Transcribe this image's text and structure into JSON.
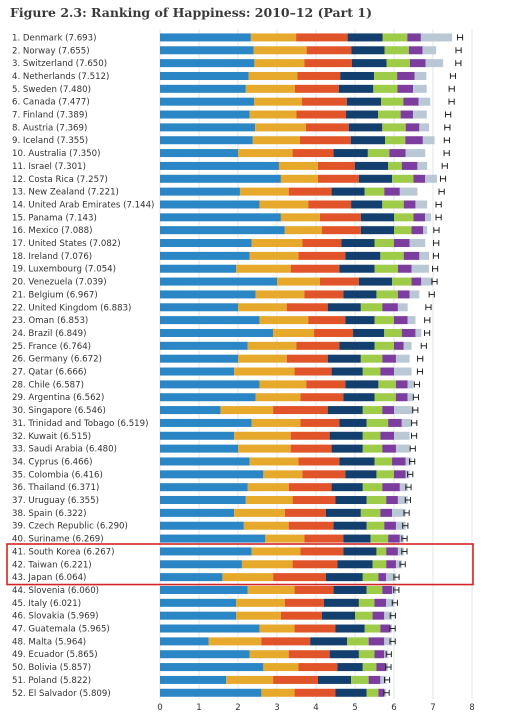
{
  "title": "Figure 2.3: Ranking of Happiness: 2010–12 (Part 1)",
  "chart_data": {
    "type": "bar",
    "orientation": "horizontal",
    "stacked": true,
    "xlim": [
      0,
      8
    ],
    "xticks": [
      0,
      1,
      2,
      3,
      4,
      5,
      6,
      7,
      8
    ],
    "grid": true,
    "highlight_rows": [
      41,
      42,
      43
    ],
    "components_order": [
      "dystopia_residual",
      "gdp",
      "social",
      "health",
      "freedom",
      "generosity",
      "corruption"
    ],
    "colors": {
      "dystopia_residual": "#2a86c4",
      "gdp": "#e7a92c",
      "social": "#e1542a",
      "health": "#123f6e",
      "freedom": "#9ecb48",
      "generosity": "#7c3d9e",
      "corruption": "#b9c8d4",
      "highlight": "#d42525"
    },
    "rows": [
      {
        "rank": 1,
        "label": "1. Denmark (7.693)",
        "value": 7.693,
        "segments": [
          2.33,
          1.16,
          1.32,
          0.9,
          0.63,
          0.35,
          0.8
        ]
      },
      {
        "rank": 2,
        "label": "2. Norway (7.655)",
        "value": 7.655,
        "segments": [
          2.4,
          1.36,
          1.15,
          0.85,
          0.62,
          0.35,
          0.35
        ]
      },
      {
        "rank": 3,
        "label": "3. Switzerland (7.650)",
        "value": 7.65,
        "segments": [
          2.42,
          1.28,
          1.22,
          0.89,
          0.6,
          0.4,
          0.45
        ]
      },
      {
        "rank": 4,
        "label": "4. Netherlands (7.512)",
        "value": 7.512,
        "segments": [
          2.27,
          1.25,
          1.1,
          0.87,
          0.59,
          0.45,
          0.3
        ]
      },
      {
        "rank": 5,
        "label": "5. Sweden (7.480)",
        "value": 7.48,
        "segments": [
          2.2,
          1.26,
          1.13,
          0.88,
          0.62,
          0.4,
          0.35
        ]
      },
      {
        "rank": 6,
        "label": "6. Canada (7.477)",
        "value": 7.477,
        "segments": [
          2.41,
          1.23,
          1.15,
          0.88,
          0.57,
          0.39,
          0.3
        ]
      },
      {
        "rank": 7,
        "label": "7. Finland (7.389)",
        "value": 7.389,
        "segments": [
          2.3,
          1.2,
          1.27,
          0.82,
          0.58,
          0.32,
          0.35
        ]
      },
      {
        "rank": 8,
        "label": "8. Austria (7.369)",
        "value": 7.369,
        "segments": [
          2.44,
          1.3,
          1.1,
          0.86,
          0.6,
          0.35,
          0.25
        ]
      },
      {
        "rank": 9,
        "label": "9. Iceland (7.355)",
        "value": 7.355,
        "segments": [
          2.38,
          1.21,
          1.3,
          0.88,
          0.52,
          0.45,
          0.3
        ]
      },
      {
        "rank": 10,
        "label": "10. Australia (7.350)",
        "value": 7.35,
        "segments": [
          2.0,
          1.4,
          1.05,
          0.88,
          0.55,
          0.42,
          0.5
        ]
      },
      {
        "rank": 11,
        "label": "11. Israel (7.301)",
        "value": 7.301,
        "segments": [
          3.05,
          1.0,
          0.95,
          0.85,
          0.35,
          0.4,
          0.25
        ]
      },
      {
        "rank": 12,
        "label": "12. Costa Rica (7.257)",
        "value": 7.257,
        "segments": [
          3.1,
          0.95,
          1.05,
          0.85,
          0.55,
          0.3,
          0.3
        ]
      },
      {
        "rank": 13,
        "label": "13. New Zealand (7.221)",
        "value": 7.221,
        "segments": [
          2.05,
          1.25,
          1.1,
          0.85,
          0.5,
          0.4,
          0.45
        ]
      },
      {
        "rank": 14,
        "label": "14. United Arab Emirates (7.144)",
        "value": 7.144,
        "segments": [
          2.55,
          1.25,
          1.1,
          0.8,
          0.55,
          0.3,
          0.3
        ]
      },
      {
        "rank": 15,
        "label": "15. Panama (7.143)",
        "value": 7.143,
        "segments": [
          3.1,
          1.0,
          1.05,
          0.85,
          0.5,
          0.3,
          0.15
        ]
      },
      {
        "rank": 16,
        "label": "16. Mexico (7.088)",
        "value": 7.088,
        "segments": [
          3.2,
          0.95,
          1.0,
          0.85,
          0.45,
          0.3,
          0.1
        ]
      },
      {
        "rank": 17,
        "label": "17. United States (7.082)",
        "value": 7.082,
        "segments": [
          2.35,
          1.3,
          1.0,
          0.85,
          0.5,
          0.4,
          0.4
        ]
      },
      {
        "rank": 18,
        "label": "18. Ireland (7.076)",
        "value": 7.076,
        "segments": [
          2.3,
          1.25,
          1.2,
          0.9,
          0.6,
          0.4,
          0.25
        ]
      },
      {
        "rank": 19,
        "label": "19. Luxembourg (7.054)",
        "value": 7.054,
        "segments": [
          1.95,
          1.4,
          1.25,
          0.9,
          0.6,
          0.35,
          0.45
        ]
      },
      {
        "rank": 20,
        "label": "20. Venezuela (7.039)",
        "value": 7.039,
        "segments": [
          3.0,
          1.1,
          1.0,
          0.85,
          0.5,
          0.25,
          0.3
        ]
      },
      {
        "rank": 21,
        "label": "21. Belgium (6.967)",
        "value": 6.967,
        "segments": [
          2.45,
          1.25,
          1.0,
          0.85,
          0.55,
          0.3,
          0.25
        ]
      },
      {
        "rank": 22,
        "label": "22. United Kingdom (6.883)",
        "value": 6.883,
        "segments": [
          2.0,
          1.25,
          1.05,
          0.85,
          0.55,
          0.4,
          0.25
        ]
      },
      {
        "rank": 23,
        "label": "23. Oman (6.853)",
        "value": 6.853,
        "segments": [
          2.55,
          1.25,
          0.95,
          0.75,
          0.5,
          0.35,
          0.2
        ]
      },
      {
        "rank": 24,
        "label": "24. Brazil (6.849)",
        "value": 6.849,
        "segments": [
          2.9,
          1.05,
          1.0,
          0.8,
          0.45,
          0.35,
          0.15
        ]
      },
      {
        "rank": 25,
        "label": "25. France (6.764)",
        "value": 6.764,
        "segments": [
          2.25,
          1.25,
          1.1,
          0.9,
          0.5,
          0.25,
          0.2
        ]
      },
      {
        "rank": 26,
        "label": "26. Germany (6.672)",
        "value": 6.672,
        "segments": [
          2.0,
          1.25,
          1.05,
          0.85,
          0.55,
          0.35,
          0.35
        ]
      },
      {
        "rank": 27,
        "label": "27. Qatar (6.666)",
        "value": 6.666,
        "segments": [
          1.9,
          1.55,
          0.95,
          0.8,
          0.45,
          0.35,
          0.45
        ]
      },
      {
        "rank": 28,
        "label": "28. Chile (6.587)",
        "value": 6.587,
        "segments": [
          2.55,
          1.2,
          1.0,
          0.85,
          0.45,
          0.3,
          0.15
        ]
      },
      {
        "rank": 29,
        "label": "29. Argentina (6.562)",
        "value": 6.562,
        "segments": [
          2.45,
          1.15,
          1.1,
          0.8,
          0.55,
          0.3,
          0.15
        ]
      },
      {
        "rank": 30,
        "label": "30. Singapore (6.546)",
        "value": 6.546,
        "segments": [
          1.55,
          1.35,
          1.4,
          0.9,
          0.5,
          0.3,
          0.5
        ]
      },
      {
        "rank": 31,
        "label": "31. Trinidad and Tobago (6.519)",
        "value": 6.519,
        "segments": [
          2.35,
          1.25,
          1.0,
          0.7,
          0.55,
          0.35,
          0.25
        ]
      },
      {
        "rank": 32,
        "label": "32. Kuwait (6.515)",
        "value": 6.515,
        "segments": [
          1.9,
          1.45,
          1.0,
          0.85,
          0.45,
          0.35,
          0.4
        ]
      },
      {
        "rank": 33,
        "label": "33. Saudi Arabia (6.480)",
        "value": 6.48,
        "segments": [
          2.0,
          1.35,
          1.05,
          0.8,
          0.5,
          0.35,
          0.35
        ]
      },
      {
        "rank": 34,
        "label": "34. Cyprus (6.466)",
        "value": 6.466,
        "segments": [
          2.3,
          1.25,
          1.05,
          0.9,
          0.45,
          0.35,
          0.15
        ]
      },
      {
        "rank": 35,
        "label": "35. Colombia (6.416)",
        "value": 6.416,
        "segments": [
          2.65,
          1.0,
          1.1,
          0.8,
          0.45,
          0.3,
          0.1
        ]
      },
      {
        "rank": 36,
        "label": "36. Thailand (6.371)",
        "value": 6.371,
        "segments": [
          2.25,
          1.05,
          1.1,
          0.8,
          0.5,
          0.45,
          0.2
        ]
      },
      {
        "rank": 37,
        "label": "37. Uruguay (6.355)",
        "value": 6.355,
        "segments": [
          2.2,
          1.2,
          1.1,
          0.8,
          0.5,
          0.3,
          0.25
        ]
      },
      {
        "rank": 38,
        "label": "38. Spain (6.322)",
        "value": 6.322,
        "segments": [
          1.9,
          1.3,
          1.05,
          0.9,
          0.5,
          0.3,
          0.35
        ]
      },
      {
        "rank": 39,
        "label": "39. Czech Republic (6.290)",
        "value": 6.29,
        "segments": [
          2.15,
          1.15,
          1.15,
          0.85,
          0.45,
          0.3,
          0.25
        ]
      },
      {
        "rank": 40,
        "label": "40. Suriname (6.269)",
        "value": 6.269,
        "segments": [
          2.7,
          1.0,
          1.0,
          0.7,
          0.45,
          0.3,
          0.1
        ]
      },
      {
        "rank": 41,
        "label": "41. South Korea (6.267)",
        "value": 6.267,
        "segments": [
          2.35,
          1.25,
          1.1,
          0.85,
          0.25,
          0.3,
          0.15
        ]
      },
      {
        "rank": 42,
        "label": "42. Taiwan (6.221)",
        "value": 6.221,
        "segments": [
          2.1,
          1.3,
          1.15,
          0.9,
          0.35,
          0.25,
          0.15
        ]
      },
      {
        "rank": 43,
        "label": "43. Japan (6.064)",
        "value": 6.064,
        "segments": [
          1.6,
          1.3,
          1.35,
          0.95,
          0.4,
          0.2,
          0.25
        ]
      },
      {
        "rank": 44,
        "label": "44. Slovenia (6.060)",
        "value": 6.06,
        "segments": [
          2.25,
          1.2,
          1.0,
          0.85,
          0.4,
          0.25,
          0.1
        ]
      },
      {
        "rank": 45,
        "label": "45. Italy (6.021)",
        "value": 6.021,
        "segments": [
          1.95,
          1.25,
          1.0,
          0.9,
          0.4,
          0.3,
          0.2
        ]
      },
      {
        "rank": 46,
        "label": "46. Slovakia (5.969)",
        "value": 5.969,
        "segments": [
          1.95,
          1.15,
          1.05,
          0.85,
          0.45,
          0.3,
          0.2
        ]
      },
      {
        "rank": 47,
        "label": "47. Guatemala (5.965)",
        "value": 5.965,
        "segments": [
          2.55,
          0.9,
          1.05,
          0.75,
          0.4,
          0.25,
          0.05
        ]
      },
      {
        "rank": 48,
        "label": "48. Malta (5.964)",
        "value": 5.964,
        "segments": [
          1.25,
          1.35,
          1.25,
          0.95,
          0.55,
          0.4,
          0.2
        ]
      },
      {
        "rank": 49,
        "label": "49. Ecuador (5.865)",
        "value": 5.865,
        "segments": [
          2.3,
          1.0,
          1.05,
          0.75,
          0.4,
          0.25,
          0.1
        ]
      },
      {
        "rank": 50,
        "label": "50. Bolivia (5.857)",
        "value": 5.857,
        "segments": [
          2.65,
          0.9,
          1.0,
          0.65,
          0.35,
          0.25,
          0.05
        ]
      },
      {
        "rank": 51,
        "label": "51. Poland (5.822)",
        "value": 5.822,
        "segments": [
          1.7,
          1.2,
          1.15,
          0.85,
          0.45,
          0.3,
          0.15
        ]
      },
      {
        "rank": 52,
        "label": "52. El Salvador (5.809)",
        "value": 5.809,
        "segments": [
          2.6,
          0.85,
          1.05,
          0.8,
          0.3,
          0.15,
          0.05
        ]
      }
    ]
  }
}
